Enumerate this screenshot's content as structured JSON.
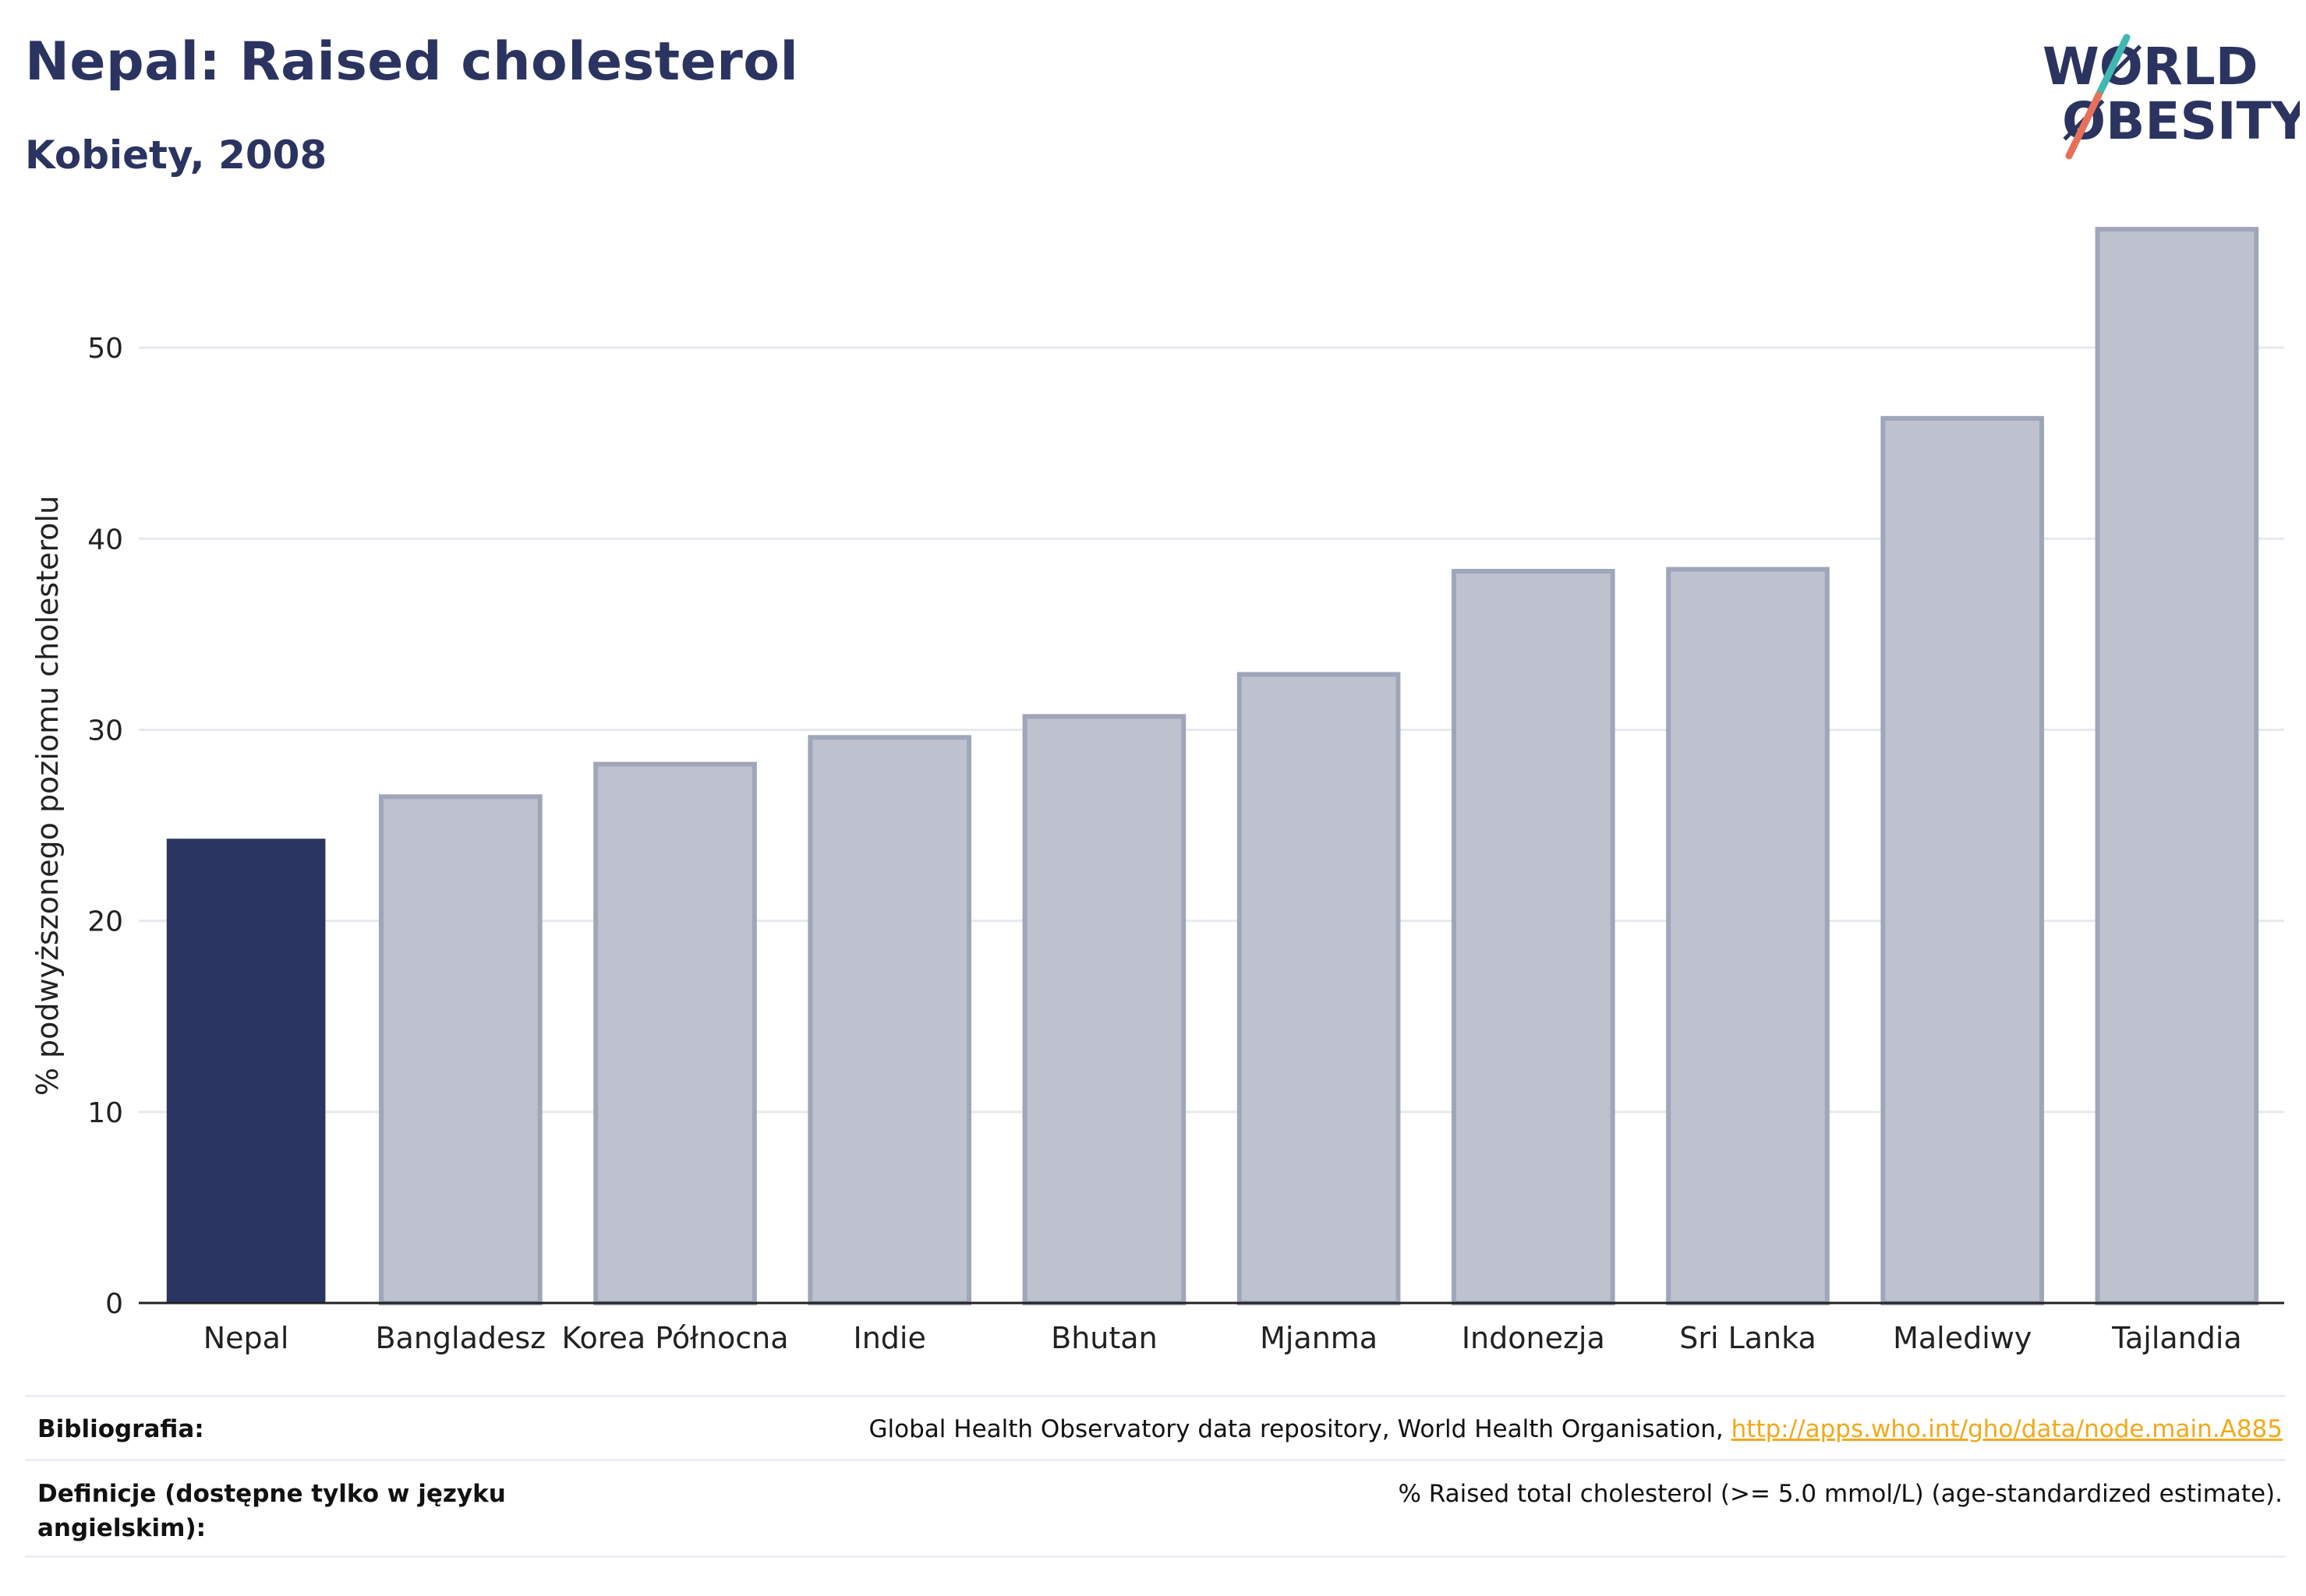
{
  "header": {
    "title": "Nepal: Raised cholesterol",
    "subtitle": "Kobiety, 2008"
  },
  "logo": {
    "line1": "WØRLD",
    "line2": "ØBESITY"
  },
  "colors": {
    "highlight": "#2b3562",
    "bar_fill": "#bec2cf",
    "bar_stroke": "#9fa6ba",
    "title": "#2b3460",
    "link": "#f2a91a",
    "logo_slash_top": "#3fb8b2",
    "logo_slash_bottom": "#e8705a"
  },
  "chart_data": {
    "type": "bar",
    "categories": [
      "Nepal",
      "Bangladesz",
      "Korea Północna",
      "Indie",
      "Bhutan",
      "Mjanma",
      "Indonezja",
      "Sri Lanka",
      "Malediwy",
      "Tajlandia"
    ],
    "values": [
      24.3,
      26.5,
      28.2,
      29.6,
      30.7,
      32.9,
      38.3,
      38.4,
      46.3,
      56.2
    ],
    "highlight": "Nepal",
    "ylabel": "% podwyższonego poziomu cholesterolu",
    "xlabel": "",
    "ylim": [
      0,
      58
    ],
    "yticks": [
      0,
      10,
      20,
      30,
      40,
      50
    ],
    "grid": true
  },
  "footer": {
    "bibliography_label": "Bibliografia:",
    "bibliography_text": "Global Health Observatory data repository, World Health Organisation, ",
    "bibliography_link": "http://apps.who.int/gho/data/node.main.A885",
    "definitions_label": "Definicje (dostępne tylko w języku angielskim):",
    "definitions_text": "% Raised total cholesterol (>= 5.0 mmol/L) (age-standardized estimate)."
  }
}
